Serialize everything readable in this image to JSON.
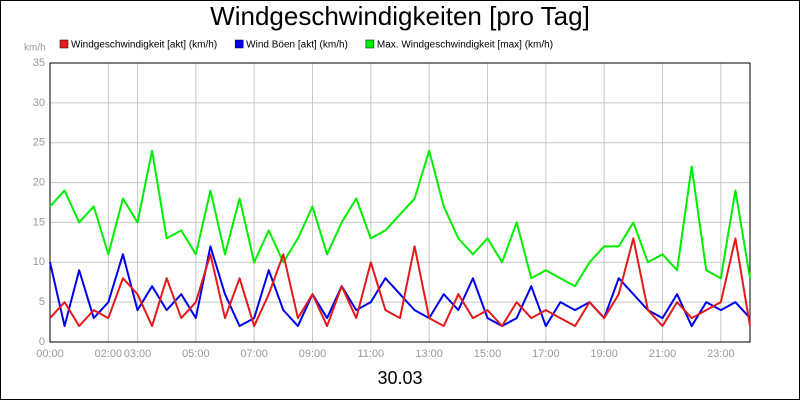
{
  "chart_data": {
    "type": "line",
    "title": "Windgeschwindigkeiten [pro Tag]",
    "y_unit": "km/h",
    "x_label": "30.03",
    "legend": "top",
    "grid": true,
    "xlim": [
      0,
      24
    ],
    "xticks": [
      {
        "value": 0,
        "label": "00:00"
      },
      {
        "value": 2,
        "label": "02:00"
      },
      {
        "value": 3,
        "label": "03:00"
      },
      {
        "value": 5,
        "label": "05:00"
      },
      {
        "value": 7,
        "label": "07:00"
      },
      {
        "value": 9,
        "label": "09:00"
      },
      {
        "value": 11,
        "label": "11:00"
      },
      {
        "value": 13,
        "label": "13:00"
      },
      {
        "value": 15,
        "label": "15:00"
      },
      {
        "value": 17,
        "label": "17:00"
      },
      {
        "value": 19,
        "label": "19:00"
      },
      {
        "value": 21,
        "label": "21:00"
      },
      {
        "value": 23,
        "label": "23:00"
      }
    ],
    "ylim": [
      0,
      35
    ],
    "yticks": [
      0,
      5,
      10,
      15,
      20,
      25,
      30,
      35
    ],
    "x": [
      0,
      0.5,
      1,
      1.5,
      2,
      2.5,
      3,
      3.5,
      4,
      4.5,
      5,
      5.5,
      6,
      6.5,
      7,
      7.5,
      8,
      8.5,
      9,
      9.5,
      10,
      10.5,
      11,
      11.5,
      12,
      12.5,
      13,
      13.5,
      14,
      14.5,
      15,
      15.5,
      16,
      16.5,
      17,
      17.5,
      18,
      18.5,
      19,
      19.5,
      20,
      20.5,
      21,
      21.5,
      22,
      22.5,
      23,
      23.5,
      24
    ],
    "series": [
      {
        "name": "Windgeschwindigkeit [akt] (km/h)",
        "color": "#e31a1c",
        "values": [
          3,
          5,
          2,
          4,
          3,
          8,
          6,
          2,
          8,
          3,
          5,
          11,
          3,
          8,
          2,
          6,
          11,
          3,
          6,
          2,
          7,
          3,
          10,
          4,
          3,
          12,
          3,
          2,
          6,
          3,
          4,
          2,
          5,
          3,
          4,
          3,
          2,
          5,
          3,
          6,
          13,
          4,
          2,
          5,
          3,
          4,
          5,
          13,
          2
        ]
      },
      {
        "name": "Wind Böen [akt] (km/h)",
        "color": "#0000ee",
        "values": [
          10,
          2,
          9,
          3,
          5,
          11,
          4,
          7,
          4,
          6,
          3,
          12,
          6,
          2,
          3,
          9,
          4,
          2,
          6,
          3,
          7,
          4,
          5,
          8,
          6,
          4,
          3,
          6,
          4,
          8,
          3,
          2,
          3,
          7,
          2,
          5,
          4,
          5,
          3,
          8,
          6,
          4,
          3,
          6,
          2,
          5,
          4,
          5,
          3
        ]
      },
      {
        "name": "Max. Windgeschwindigkeit [max] (km/h)",
        "color": "#00ee00",
        "values": [
          17,
          19,
          15,
          17,
          11,
          18,
          15,
          24,
          13,
          14,
          11,
          19,
          11,
          18,
          10,
          14,
          10,
          13,
          17,
          11,
          15,
          18,
          13,
          14,
          16,
          18,
          24,
          17,
          13,
          11,
          13,
          10,
          15,
          8,
          9,
          8,
          7,
          10,
          12,
          12,
          15,
          10,
          11,
          9,
          22,
          9,
          8,
          19,
          8
        ]
      }
    ]
  }
}
